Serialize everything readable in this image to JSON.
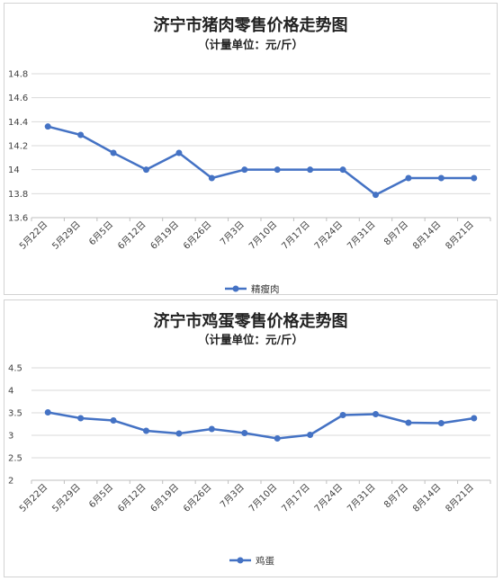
{
  "colors": {
    "series": "#4472c4",
    "grid": "#d9d9d9",
    "axis": "#bfbfbf"
  },
  "chart_data": [
    {
      "type": "line",
      "title": "济宁市猪肉零售价格走势图",
      "subtitle": "（计量单位：元/斤）",
      "categories": [
        "5月22日",
        "5月29日",
        "6月5日",
        "6月12日",
        "6月19日",
        "6月26日",
        "7月3日",
        "7月10日",
        "7月17日",
        "7月24日",
        "7月31日",
        "8月7日",
        "8月14日",
        "8月21日"
      ],
      "series": [
        {
          "name": "精瘦肉",
          "values": [
            14.36,
            14.29,
            14.14,
            14.0,
            14.14,
            13.93,
            14.0,
            14.0,
            14.0,
            14.0,
            13.79,
            13.93,
            13.93,
            13.93
          ]
        }
      ],
      "ylim": [
        13.6,
        14.8
      ],
      "yticks": [
        "13.6",
        "13.8",
        "14",
        "14.2",
        "14.4",
        "14.6",
        "14.8"
      ],
      "grid": true,
      "legend": "bottom"
    },
    {
      "type": "line",
      "title": "济宁市鸡蛋零售价格走势图",
      "subtitle": "（计量单位：元/斤）",
      "categories": [
        "5月22日",
        "5月29日",
        "6月5日",
        "6月12日",
        "6月19日",
        "6月26日",
        "7月3日",
        "7月10日",
        "7月17日",
        "7月24日",
        "7月31日",
        "8月7日",
        "8月14日",
        "8月21日"
      ],
      "series": [
        {
          "name": "鸡蛋",
          "values": [
            3.51,
            3.38,
            3.33,
            3.1,
            3.04,
            3.14,
            3.05,
            2.93,
            3.01,
            3.45,
            3.47,
            3.28,
            3.27,
            3.38
          ]
        }
      ],
      "ylim": [
        2,
        4.5
      ],
      "yticks": [
        "2",
        "2.5",
        "3",
        "3.5",
        "4",
        "4.5"
      ],
      "grid": true,
      "legend": "bottom"
    }
  ]
}
